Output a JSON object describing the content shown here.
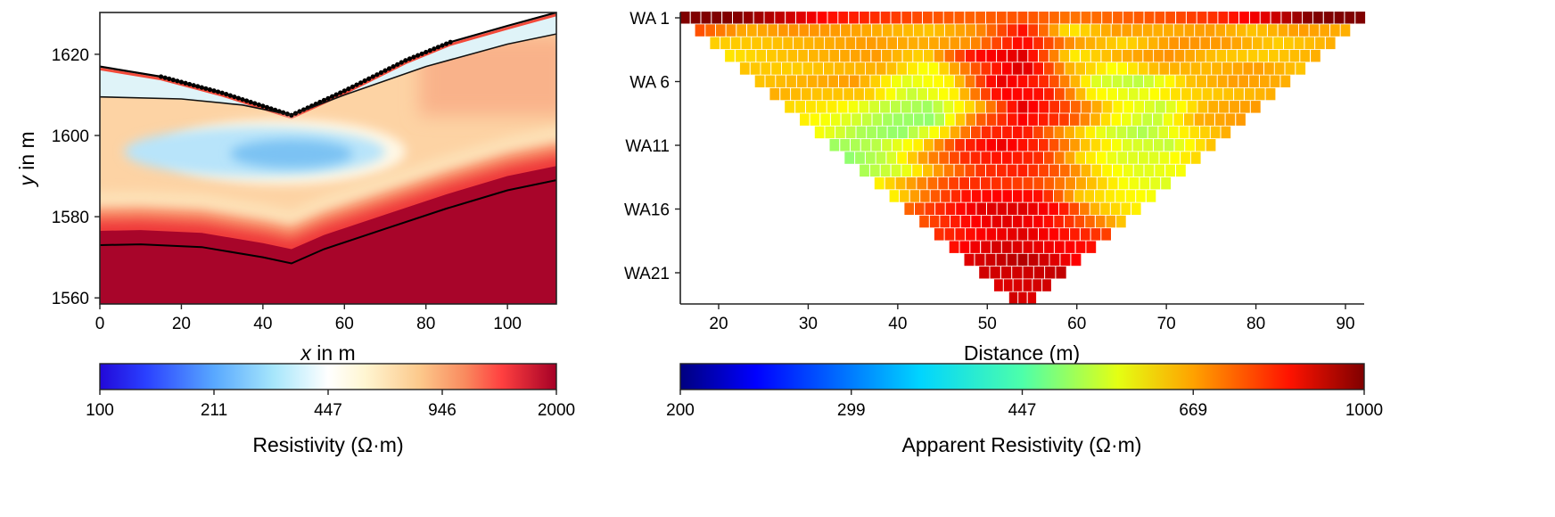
{
  "chart_data": [
    {
      "type": "heatmap",
      "subtype": "inversion-mesh",
      "xlabel_italic": "x",
      "xlabel": " in m",
      "ylabel_italic": "y",
      "ylabel": " in m",
      "xlim": [
        0,
        112
      ],
      "ylim": [
        1558.5,
        1630.3
      ],
      "xticks": [
        "0",
        "20",
        "40",
        "60",
        "80",
        "100"
      ],
      "yticks": [
        "1560",
        "1580",
        "1600",
        "1620"
      ],
      "colormap": "RdYlBu_r",
      "color_scale": "log",
      "colorbar": {
        "label": "Resistivity (Ω·m)",
        "range": [
          100,
          2000
        ],
        "ticks": [
          "100",
          "211",
          "447",
          "946",
          "2000"
        ]
      },
      "surface": [
        [
          0,
          1617
        ],
        [
          15,
          1614.5
        ],
        [
          30,
          1610.5
        ],
        [
          47,
          1605
        ],
        [
          60,
          1611
        ],
        [
          75,
          1618.5
        ],
        [
          86,
          1623
        ],
        [
          100,
          1627
        ],
        [
          112,
          1630.3
        ]
      ],
      "boundary_upper": [
        [
          0,
          1609.5
        ],
        [
          20,
          1609
        ],
        [
          35,
          1607.5
        ],
        [
          47,
          1605
        ],
        [
          60,
          1610
        ],
        [
          80,
          1617
        ],
        [
          100,
          1622.5
        ],
        [
          112,
          1625
        ]
      ],
      "boundary_lower": [
        [
          0,
          1573
        ],
        [
          10,
          1573.2
        ],
        [
          25,
          1572.5
        ],
        [
          40,
          1570
        ],
        [
          47,
          1568.5
        ],
        [
          55,
          1572
        ],
        [
          70,
          1577
        ],
        [
          85,
          1582
        ],
        [
          100,
          1586.5
        ],
        [
          112,
          1589
        ]
      ],
      "anomaly_low": {
        "x": 47,
        "y": 1596,
        "value": 300
      }
    },
    {
      "type": "heatmap",
      "subtype": "pseudosection",
      "xlabel": "Distance (m)",
      "xlim": [
        15.7,
        92.3
      ],
      "xticks": [
        "20",
        "30",
        "40",
        "50",
        "60",
        "70",
        "80",
        "90"
      ],
      "yticks": [
        "WA 1",
        "WA 6",
        "WA11",
        "WA16",
        "WA21"
      ],
      "colormap": "jet",
      "color_scale": "log",
      "colorbar": {
        "label": "Apparent Resistivity (Ω·m)",
        "range": [
          200,
          1000
        ],
        "ticks": [
          "200",
          "299",
          "447",
          "669",
          "1000"
        ]
      },
      "rows": [
        [
          1000,
          1000,
          900,
          800,
          760,
          720,
          700,
          720,
          680,
          700,
          720,
          760,
          850,
          1000,
          1000
        ],
        [
          720,
          620,
          650,
          640,
          620,
          600,
          650,
          800,
          560,
          640,
          620,
          640,
          600,
          640,
          620
        ],
        [
          590,
          600,
          620,
          640,
          620,
          650,
          820,
          640,
          580,
          650,
          640,
          590,
          620
        ],
        [
          570,
          600,
          620,
          640,
          580,
          800,
          860,
          560,
          620,
          650,
          600,
          590,
          620
        ],
        [
          600,
          590,
          610,
          620,
          530,
          720,
          880,
          620,
          540,
          620,
          610,
          640,
          600
        ],
        [
          600,
          620,
          640,
          520,
          560,
          850,
          760,
          520,
          490,
          600,
          640,
          620
        ],
        [
          620,
          600,
          600,
          500,
          560,
          820,
          800,
          560,
          520,
          580,
          600,
          620
        ],
        [
          580,
          560,
          500,
          470,
          600,
          850,
          720,
          560,
          500,
          620,
          640
        ],
        [
          560,
          520,
          470,
          460,
          700,
          820,
          740,
          560,
          490,
          620,
          640
        ],
        [
          540,
          480,
          460,
          560,
          760,
          800,
          640,
          520,
          480,
          560,
          620
        ],
        [
          470,
          490,
          560,
          760,
          840,
          760,
          600,
          520,
          500,
          600
        ],
        [
          460,
          500,
          650,
          760,
          800,
          760,
          580,
          520,
          520,
          580
        ],
        [
          480,
          520,
          660,
          760,
          780,
          700,
          560,
          520,
          540
        ],
        [
          560,
          660,
          760,
          760,
          720,
          620,
          540,
          520
        ],
        [
          560,
          700,
          800,
          820,
          800,
          600,
          560,
          540
        ],
        [
          700,
          780,
          860,
          860,
          800,
          600,
          560
        ],
        [
          720,
          800,
          860,
          820,
          720,
          600
        ],
        [
          760,
          820,
          860,
          800,
          740
        ],
        [
          800,
          880,
          840,
          800
        ],
        [
          860,
          920,
          820
        ],
        [
          880,
          880,
          900
        ],
        [
          860,
          880
        ],
        [
          880,
          860
        ]
      ]
    }
  ]
}
